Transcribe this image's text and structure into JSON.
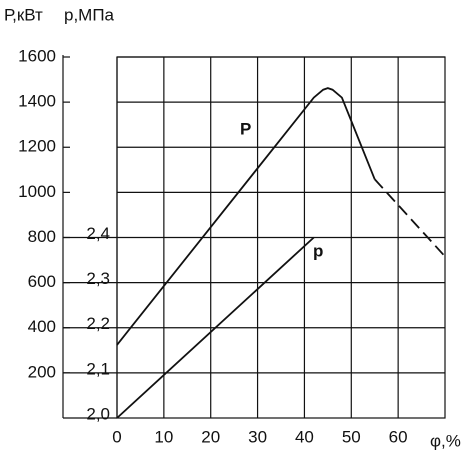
{
  "chart_data": {
    "type": "line",
    "y_label": "Р,кВт",
    "y2_label": "р,МПа",
    "x_label": "φ,%",
    "xlim": [
      0,
      70
    ],
    "xticks": [
      0,
      10,
      20,
      30,
      40,
      50,
      60
    ],
    "ylim": [
      0,
      1600
    ],
    "yticks": [
      200,
      400,
      600,
      800,
      1000,
      1200,
      1400,
      1600
    ],
    "y2lim": [
      2.0,
      2.8
    ],
    "y2ticks": [
      {
        "value": 2.0,
        "label": "2,0"
      },
      {
        "value": 2.1,
        "label": "2,1"
      },
      {
        "value": 2.2,
        "label": "2,2"
      },
      {
        "value": 2.3,
        "label": "2,3"
      },
      {
        "value": 2.4,
        "label": "2,4"
      }
    ],
    "grid": true,
    "series": [
      {
        "name": "Р",
        "color": "#111111",
        "x": [
          0,
          42,
          44,
          45,
          46,
          48,
          55
        ],
        "values": [
          324,
          1420,
          1455,
          1462,
          1455,
          1420,
          1058
        ],
        "dashed_segment": {
          "x": [
            55,
            70
          ],
          "values": [
            1058,
            716
          ]
        }
      },
      {
        "name": "р",
        "color": "#111111",
        "axis": "y2",
        "x": [
          0,
          42
        ],
        "values": [
          2.0,
          2.4
        ]
      }
    ]
  }
}
